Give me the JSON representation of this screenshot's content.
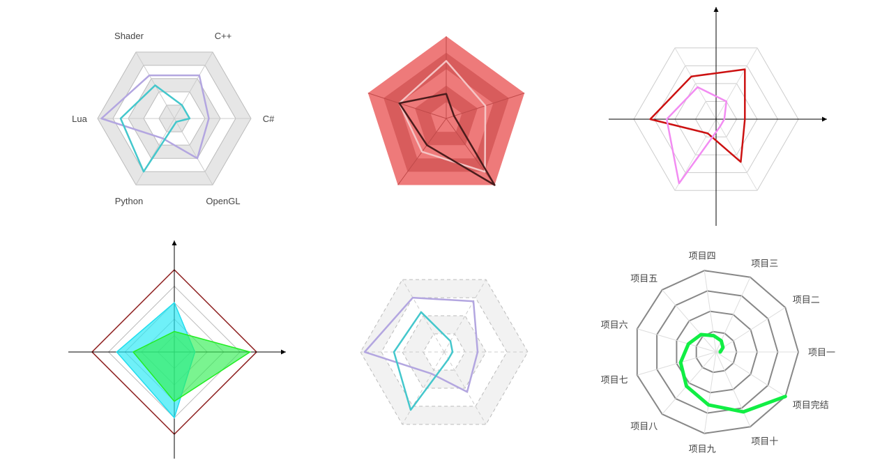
{
  "chart_data": [
    {
      "type": "radar",
      "style": "filled-bands",
      "indicators": [
        "C#",
        "C++",
        "Shader",
        "Lua",
        "Python",
        "OpenGL"
      ],
      "max": 100,
      "rings": 5,
      "colors": {
        "band": "#e6e6e6",
        "border": "#bbbbbb"
      },
      "series": [
        {
          "color": "#b3a6e0",
          "values": [
            45,
            65,
            65,
            95,
            30,
            60
          ]
        },
        {
          "color": "#44c7cc",
          "values": [
            20,
            20,
            50,
            70,
            80,
            5
          ]
        }
      ]
    },
    {
      "type": "radar",
      "style": "polygon-red",
      "indicators": [
        "",
        "",
        "",
        "",
        ""
      ],
      "max": 100,
      "rings": 5,
      "start_angle": 18,
      "colors": {
        "band_dark": "#d85c5c",
        "band_light": "#ee7a7a"
      },
      "series": [
        {
          "color": "#f5c4c4",
          "values": [
            50,
            70,
            60,
            50,
            80
          ]
        },
        {
          "color": "#4a1c1c",
          "values": [
            10,
            30,
            60,
            40,
            100
          ]
        }
      ]
    },
    {
      "type": "radar",
      "style": "axes",
      "indicators": [
        "",
        "",
        "",
        "",
        "",
        ""
      ],
      "max": 100,
      "rings": 4,
      "series": [
        {
          "color": "#cc1111",
          "values": [
            35,
            70,
            60,
            80,
            20,
            60
          ]
        },
        {
          "color": "#f28cf2",
          "values": [
            10,
            25,
            45,
            60,
            90,
            10
          ]
        }
      ]
    },
    {
      "type": "radar",
      "style": "diamond-axes",
      "indicators": [
        "",
        "",
        "",
        ""
      ],
      "max": 100,
      "rings": 5,
      "series": [
        {
          "color": "#22ee22",
          "fill": "#33ee55",
          "values": [
            92,
            25,
            50,
            60
          ]
        },
        {
          "color": "#22ddee",
          "fill": "#22e8f5",
          "values": [
            25,
            60,
            70,
            80
          ]
        }
      ]
    },
    {
      "type": "radar",
      "style": "dashed-bands",
      "indicators": [
        "",
        "",
        "",
        "",
        "",
        ""
      ],
      "max": 100,
      "rings": 4,
      "series": [
        {
          "color": "#b3a6e0",
          "values": [
            40,
            70,
            75,
            95,
            30,
            55
          ]
        },
        {
          "color": "#44c7cc",
          "values": [
            10,
            15,
            55,
            60,
            80,
            10
          ]
        }
      ]
    },
    {
      "type": "radar",
      "style": "spiral",
      "indicators": [
        "项目一",
        "项目二",
        "项目三",
        "项目四",
        "项目五",
        "项目六",
        "项目七",
        "项目八",
        "项目九",
        "项目十",
        "项目完结"
      ],
      "max": 100,
      "rings": 4,
      "series": [
        {
          "color": "#11ee44",
          "values": [
            5,
            10,
            15,
            20,
            28,
            35,
            45,
            55,
            65,
            80,
            100
          ]
        }
      ]
    }
  ]
}
